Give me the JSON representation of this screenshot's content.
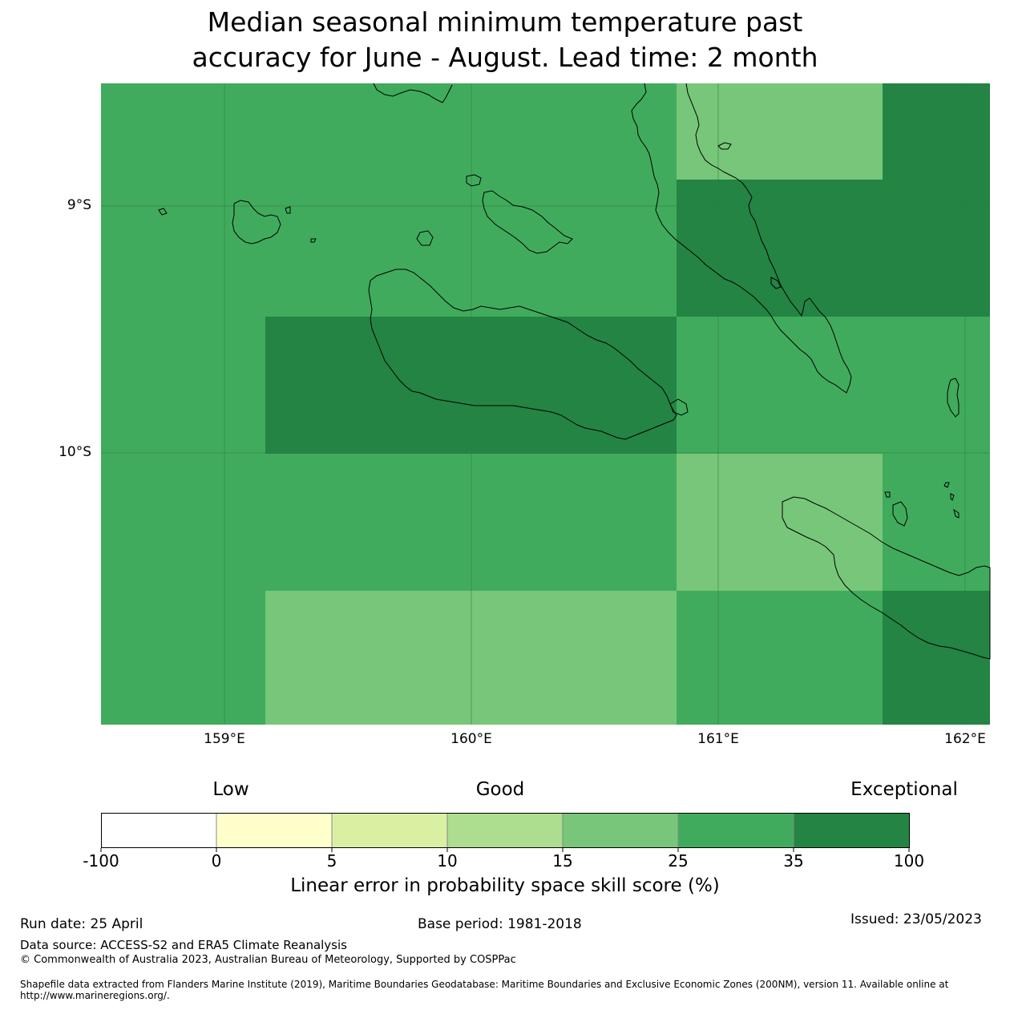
{
  "title": {
    "line1": "Median seasonal minimum temperature past",
    "line2": "accuracy for June - August. Lead time: 2 month"
  },
  "map": {
    "lat_labels": [
      "9°S",
      "10°S"
    ],
    "lon_labels": [
      "159°E",
      "160°E",
      "161°E",
      "162°E"
    ],
    "colors": {
      "good_mid": "#78c679",
      "high": "#41ab5d",
      "exceptional": "#238443"
    },
    "grid_cells_skill_class": [
      [
        "25-35",
        "25-35",
        "25-35",
        "15-25",
        "35-100"
      ],
      [
        "25-35",
        "25-35",
        "25-35",
        "35-100",
        "35-100"
      ],
      [
        "25-35",
        "35-100",
        "35-100",
        "25-35",
        "25-35"
      ],
      [
        "25-35",
        "25-35",
        "25-35",
        "15-25",
        "25-35"
      ],
      [
        "25-35",
        "15-25",
        "15-25",
        "25-35",
        "35-100"
      ]
    ]
  },
  "colorbar": {
    "words": [
      "Low",
      "Good",
      "Exceptional"
    ],
    "ticks": [
      "-100",
      "0",
      "5",
      "10",
      "15",
      "25",
      "35",
      "100"
    ],
    "colors": [
      "#ffffff",
      "#ffffcc",
      "#d9f0a3",
      "#addd8e",
      "#78c679",
      "#41ab5d",
      "#238443"
    ],
    "label": "Linear error in probability space skill score (%)"
  },
  "footer": {
    "run_date": "Run date: 25 April",
    "base_period": "Base period: 1981-2018",
    "issued": "Issued: 23/05/2023",
    "data_source": "Data source: ACCESS-S2 and ERA5 Climate Reanalysis",
    "copyright": "© Commonwealth of Australia 2023, Australian Bureau of Meteorology, Supported by COSPPac",
    "shapefile": "Shapefile data extracted from Flanders Marine Institute (2019), Maritime Boundaries Geodatabase: Maritime Boundaries and Exclusive Economic Zones (200NM), version 11. Available online at http://www.marineregions.org/."
  }
}
